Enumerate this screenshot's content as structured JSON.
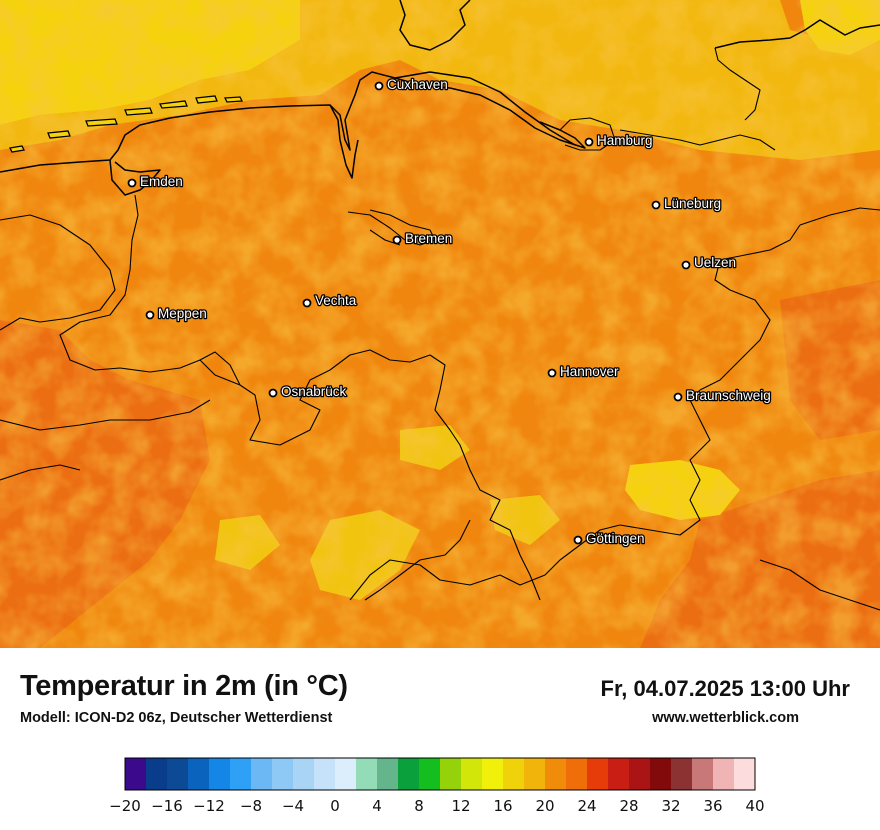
{
  "map": {
    "cities": [
      {
        "name": "Cuxhaven"
      },
      {
        "name": "Hamburg"
      },
      {
        "name": "Emden"
      },
      {
        "name": "Lüneburg"
      },
      {
        "name": "Bremen"
      },
      {
        "name": "Uelzen"
      },
      {
        "name": "Vechta"
      },
      {
        "name": "Meppen"
      },
      {
        "name": "Hannover"
      },
      {
        "name": "Osnabrück"
      },
      {
        "name": "Braunschweig"
      },
      {
        "name": "Göttingen"
      }
    ],
    "colors": {
      "sea_yellow": "#f5d20e",
      "coastal_orange": "#f2b80f",
      "land_orange": "#f0860e",
      "dark_orange": "#ec6e12",
      "warm_yellow": "#f1c40f"
    }
  },
  "info": {
    "title": "Temperatur in 2m (in °C)",
    "model": "Modell: ICON-D2 06z, Deutscher Wetterdienst",
    "datetime": "Fr, 04.07.2025 13:00 Uhr",
    "website": "www.wetterblick.com"
  },
  "legend": {
    "colors": [
      "#3b0a8c",
      "#0a3c8c",
      "#0d4a96",
      "#0a64be",
      "#1486e6",
      "#2ea0f5",
      "#6cb8f5",
      "#8ec8f5",
      "#aad4f5",
      "#c6e2fa",
      "#dcedfc",
      "#94dcb8",
      "#64b48c",
      "#0aa03c",
      "#14be1e",
      "#96d20a",
      "#d2e60a",
      "#f0f00a",
      "#f0d20a",
      "#f0b40a",
      "#f08c0a",
      "#f06e0a",
      "#e63c0a",
      "#c81e14",
      "#aa1414",
      "#820a0a",
      "#8c3232",
      "#c87878",
      "#f0b4b4",
      "#fcdcdc"
    ],
    "tick_labels": [
      "−20",
      "−16",
      "−12",
      "−8",
      "−4",
      "0",
      "4",
      "8",
      "12",
      "16",
      "20",
      "24",
      "28",
      "32",
      "36",
      "40"
    ]
  }
}
